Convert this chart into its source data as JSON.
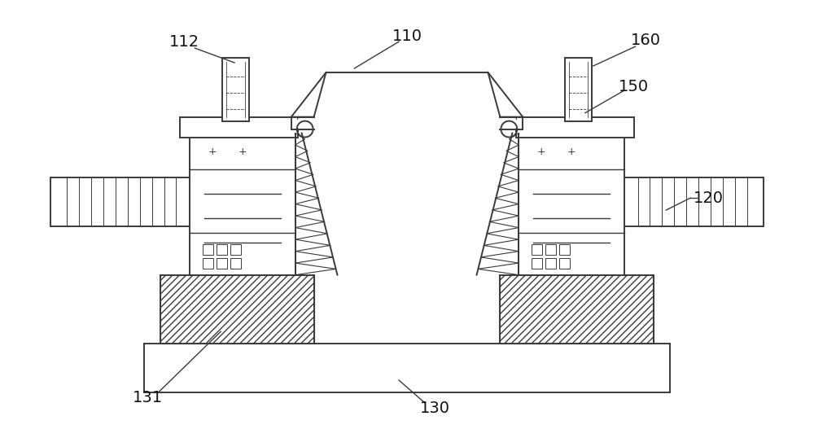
{
  "bg_color": "#ffffff",
  "line_color": "#3a3a3a",
  "fig_width": 10.0,
  "fig_height": 5.38,
  "label_fontsize": 14
}
